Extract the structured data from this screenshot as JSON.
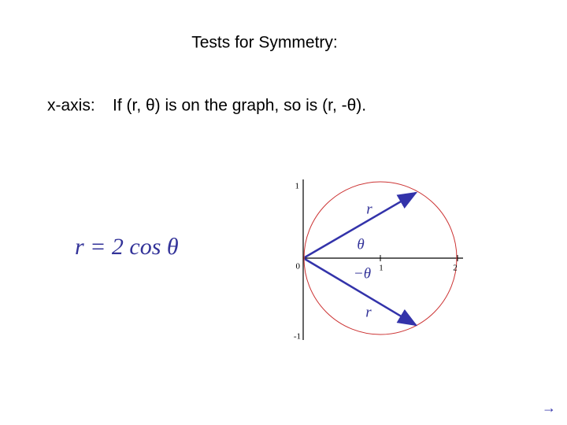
{
  "slide": {
    "title": "Tests for Symmetry:",
    "rule": {
      "label": "x-axis:",
      "text": "If (r, θ) is on the graph, so is (r, -θ)."
    },
    "formula": "r = 2 cos θ",
    "graph": {
      "axis_labels": {
        "y_top": "1",
        "origin": "0",
        "y_bottom": "-1",
        "x_one": "1",
        "x_two": "2"
      },
      "annotations": {
        "upper_radius": "r",
        "upper_angle": "θ",
        "lower_angle": "−θ",
        "lower_radius": "r"
      }
    },
    "nav": "→"
  }
}
